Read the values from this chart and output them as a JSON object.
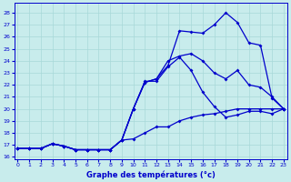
{
  "xlabel": "Graphe des températures (°c)",
  "x_ticks": [
    0,
    1,
    2,
    3,
    4,
    5,
    6,
    7,
    8,
    9,
    10,
    11,
    12,
    13,
    14,
    15,
    16,
    17,
    18,
    19,
    20,
    21,
    22,
    23
  ],
  "y_ticks": [
    16,
    17,
    18,
    19,
    20,
    21,
    22,
    23,
    24,
    25,
    26,
    27,
    28
  ],
  "ylim": [
    15.8,
    28.8
  ],
  "xlim": [
    -0.3,
    23.3
  ],
  "bg_color": "#c8ecec",
  "line_color": "#0000cc",
  "grid_color": "#a8d8d8",
  "line1_x": [
    0,
    1,
    2,
    3,
    4,
    5,
    6,
    7,
    8,
    9,
    10,
    11,
    12,
    13,
    14,
    15,
    16,
    17,
    18,
    19,
    20,
    21,
    22,
    23
  ],
  "line1": [
    16.7,
    16.7,
    16.7,
    17.1,
    16.9,
    16.6,
    16.6,
    16.6,
    16.6,
    17.4,
    20.0,
    22.2,
    22.5,
    23.6,
    26.5,
    26.4,
    26.3,
    27.0,
    28.0,
    27.2,
    25.5,
    25.3,
    20.9,
    20.0
  ],
  "line2_x": [
    0,
    1,
    2,
    3,
    4,
    5,
    6,
    7,
    8,
    9,
    10,
    11,
    12,
    13,
    14,
    15,
    16,
    17,
    18,
    19,
    20,
    21,
    22,
    23
  ],
  "line2": [
    16.7,
    16.7,
    16.7,
    17.1,
    16.9,
    16.6,
    16.6,
    16.6,
    16.6,
    17.4,
    20.0,
    22.2,
    22.5,
    24.0,
    24.4,
    24.6,
    24.0,
    23.0,
    22.5,
    23.2,
    22.0,
    21.8,
    21.0,
    20.0
  ],
  "line3_x": [
    0,
    1,
    2,
    3,
    4,
    5,
    6,
    7,
    8,
    9,
    10,
    11,
    12,
    13,
    14,
    15,
    16,
    17,
    18,
    19,
    20,
    21,
    22,
    23
  ],
  "line3": [
    16.7,
    16.7,
    16.7,
    17.1,
    16.9,
    16.6,
    16.6,
    16.6,
    16.6,
    17.4,
    20.0,
    22.3,
    22.3,
    23.5,
    24.3,
    23.2,
    21.4,
    20.2,
    19.3,
    19.5,
    19.8,
    19.8,
    19.6,
    20.0
  ],
  "line4_x": [
    0,
    1,
    2,
    3,
    4,
    5,
    6,
    7,
    8,
    9,
    10,
    11,
    12,
    13,
    14,
    15,
    16,
    17,
    18,
    19,
    20,
    21,
    22,
    23
  ],
  "line4": [
    16.7,
    16.7,
    16.7,
    17.1,
    16.9,
    16.6,
    16.6,
    16.6,
    16.6,
    17.4,
    17.5,
    18.0,
    18.5,
    18.5,
    19.0,
    19.3,
    19.5,
    19.6,
    19.8,
    20.0,
    20.0,
    20.0,
    20.0,
    20.0
  ]
}
